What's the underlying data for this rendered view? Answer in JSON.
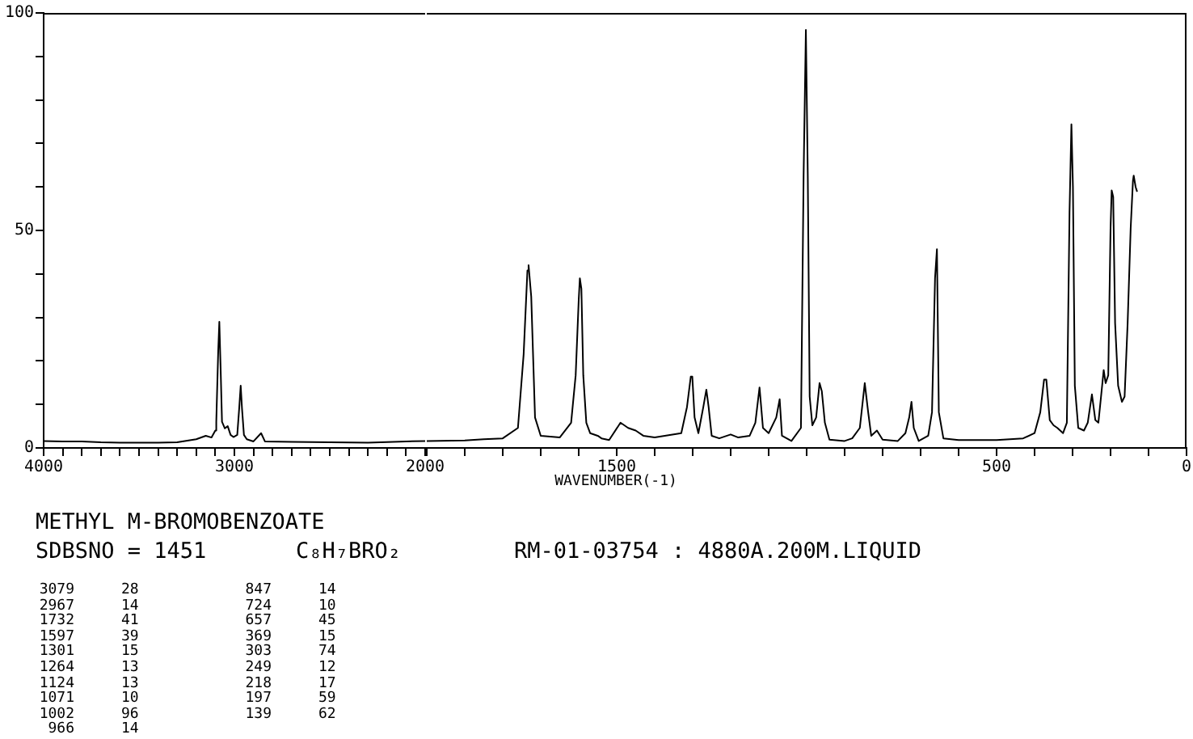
{
  "chart_data": [
    {
      "type": "line",
      "title": "METHYL M-BROMOBENZOATE",
      "color": "#000000",
      "marker": "none",
      "grid": false,
      "legend": false,
      "x": [
        4000,
        3900,
        3800,
        3700,
        3600,
        3500,
        3400,
        3300,
        3200,
        3150,
        3120,
        3100,
        3095,
        3085,
        3079,
        3072,
        3065,
        3050,
        3035,
        3020,
        3005,
        2985,
        2975,
        2967,
        2960,
        2950,
        2935,
        2900,
        2860,
        2840,
        2700,
        2500,
        2300,
        2100,
        2000
      ],
      "values": [
        1.6,
        1.5,
        1.5,
        1.3,
        1.2,
        1.2,
        1.2,
        1.3,
        2,
        2.8,
        2.4,
        4,
        6,
        22,
        29,
        18,
        6,
        4.5,
        5,
        3,
        2.5,
        3,
        9,
        14.3,
        9,
        3,
        2,
        1.5,
        3.4,
        1.5,
        1.4,
        1.3,
        1.2,
        1.5,
        1.6
      ],
      "xlim": [
        4000,
        2000
      ],
      "xticks": [
        4000,
        {
          "value": 3900,
          "label": null
        },
        {
          "value": 3800,
          "label": null
        },
        {
          "value": 3700,
          "label": null
        },
        {
          "value": 3600,
          "label": null
        },
        {
          "value": 3500,
          "label": null
        },
        {
          "value": 3400,
          "label": null
        },
        {
          "value": 3300,
          "label": null
        },
        {
          "value": 3200,
          "label": null
        },
        {
          "value": 3100,
          "label": null
        },
        3000,
        {
          "value": 2900,
          "label": null
        },
        {
          "value": 2800,
          "label": null
        },
        {
          "value": 2700,
          "label": null
        },
        {
          "value": 2600,
          "label": null
        },
        {
          "value": 2500,
          "label": null
        },
        {
          "value": 2400,
          "label": null
        },
        {
          "value": 2300,
          "label": null
        },
        {
          "value": 2200,
          "label": null
        },
        {
          "value": 2100,
          "label": null
        },
        2000
      ],
      "ylim": [
        0,
        100
      ],
      "yticks": [
        0,
        {
          "value": 10,
          "label": null
        },
        {
          "value": 20,
          "label": null
        },
        {
          "value": 30,
          "label": null
        },
        {
          "value": 40,
          "label": null
        },
        50,
        {
          "value": 60,
          "label": null
        },
        {
          "value": 70,
          "label": null
        },
        {
          "value": 80,
          "label": null
        },
        {
          "value": 90,
          "label": null
        },
        100
      ],
      "annotations": [
        "SDBSNO = 1451",
        "C₈H₇BRO₂",
        "RM-01-03754 : 4880A.200M.LIQUID",
        "3079 28",
        "2967 14",
        "1732 41",
        "1597 39",
        "1301 15",
        "1264 13",
        "1124 13",
        "1071 10",
        "1002 96",
        "966 14",
        "847 14",
        "724 10",
        "657 45",
        "369 15",
        "303 74",
        "249 12",
        "218 17",
        "197 59",
        "139 62"
      ]
    },
    {
      "type": "line",
      "xlabel": "WAVENUMBER(-1)",
      "color": "#000000",
      "marker": "none",
      "grid": false,
      "legend": false,
      "tick_labels": "x",
      "x": [
        2000,
        1900,
        1850,
        1800,
        1760,
        1745,
        1735,
        1732,
        1725,
        1715,
        1700,
        1650,
        1620,
        1608,
        1600,
        1597,
        1593,
        1588,
        1580,
        1570,
        1550,
        1540,
        1520,
        1490,
        1480,
        1470,
        1450,
        1430,
        1400,
        1350,
        1330,
        1315,
        1305,
        1301,
        1295,
        1285,
        1272,
        1264,
        1258,
        1250,
        1230,
        1200,
        1180,
        1150,
        1135,
        1124,
        1115,
        1100,
        1080,
        1071,
        1065,
        1040,
        1015,
        1008,
        1002,
        997,
        992,
        985,
        975,
        966,
        960,
        952,
        940,
        900,
        880,
        860,
        847,
        838,
        830,
        815,
        800,
        760,
        740,
        730,
        724,
        718,
        705,
        680,
        670,
        662,
        657,
        652,
        640,
        600,
        500,
        430,
        400,
        385,
        375,
        369,
        360,
        350,
        340,
        325,
        315,
        308,
        303,
        299,
        294,
        285,
        270,
        260,
        249,
        240,
        232,
        225,
        218,
        213,
        206,
        200,
        197,
        193,
        188,
        180,
        170,
        163,
        155,
        147,
        141,
        139,
        134,
        130
      ],
      "values": [
        1.6,
        1.7,
        2,
        2.2,
        4.6,
        21.5,
        40.8,
        42,
        34.8,
        7,
        2.8,
        2.4,
        5.8,
        16.7,
        34,
        39,
        36.6,
        16.7,
        5.8,
        3.4,
        2.8,
        2.2,
        1.8,
        5.8,
        5.2,
        4.6,
        4,
        2.8,
        2.4,
        3.1,
        3.4,
        9.4,
        16.4,
        16.4,
        7,
        3.4,
        9.4,
        13.4,
        9.4,
        2.8,
        2.2,
        3.1,
        2.4,
        2.8,
        5.8,
        13.9,
        4.6,
        3.4,
        7,
        11.2,
        2.8,
        1.6,
        4.6,
        62.6,
        96.1,
        62.6,
        11.8,
        5.2,
        7,
        14.9,
        13,
        5.8,
        1.9,
        1.6,
        2.2,
        4.6,
        14.9,
        8.2,
        2.8,
        4,
        1.9,
        1.6,
        3.4,
        7,
        10.6,
        4.6,
        1.6,
        2.8,
        8.2,
        39,
        45.7,
        8.2,
        2.2,
        1.8,
        1.8,
        2.2,
        3.4,
        8.2,
        15.7,
        15.7,
        6.4,
        5.2,
        4.6,
        3.4,
        5.8,
        54.1,
        74.4,
        60,
        14.3,
        4.6,
        4,
        5.8,
        12.3,
        6.4,
        5.8,
        11.8,
        17.9,
        14.9,
        16.7,
        50.5,
        59.2,
        57.7,
        28.7,
        14.3,
        10.6,
        11.8,
        28.7,
        50.5,
        61.4,
        62.6,
        60,
        58.9
      ],
      "xlim": [
        2000,
        0
      ],
      "xticks": [
        {
          "value": 2000,
          "label": null
        },
        {
          "value": 1900,
          "label": null
        },
        {
          "value": 1800,
          "label": null
        },
        {
          "value": 1700,
          "label": null
        },
        {
          "value": 1600,
          "label": null
        },
        1500,
        {
          "value": 1400,
          "label": null
        },
        {
          "value": 1300,
          "label": null
        },
        {
          "value": 1200,
          "label": null
        },
        {
          "value": 1100,
          "label": null
        },
        {
          "value": 1000,
          "label": null
        },
        {
          "value": 900,
          "label": null
        },
        {
          "value": 800,
          "label": null
        },
        {
          "value": 700,
          "label": null
        },
        {
          "value": 600,
          "label": null
        },
        500,
        {
          "value": 400,
          "label": null
        },
        {
          "value": 300,
          "label": null
        },
        {
          "value": 200,
          "label": null
        },
        {
          "value": 100,
          "label": null
        },
        0
      ],
      "ylim": [
        0,
        100
      ]
    }
  ]
}
